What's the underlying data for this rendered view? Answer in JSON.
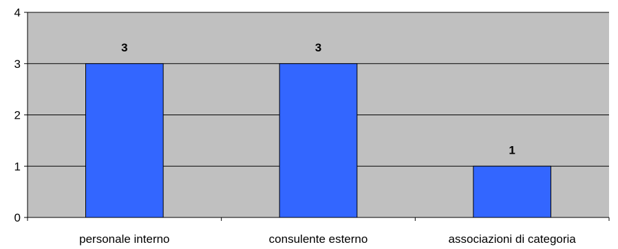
{
  "chart_data": {
    "type": "bar",
    "title": "",
    "xlabel": "",
    "ylabel": "",
    "categories": [
      "personale interno",
      "consulente esterno",
      "associazioni di categoria"
    ],
    "values": [
      3,
      3,
      1
    ],
    "data_labels": [
      "3",
      "3",
      "1"
    ],
    "ylim": [
      0,
      4
    ],
    "yticks": [
      0,
      1,
      2,
      3,
      4
    ],
    "ytick_labels": [
      "0",
      "1",
      "2",
      "3",
      "4"
    ],
    "grid": true,
    "legend": "none",
    "colors": {
      "bar_fill": "#3366FF",
      "bar_stroke": "#000000",
      "plot_background": "#C0C0C0",
      "gridline": "#000000",
      "axis": "#000000"
    }
  }
}
